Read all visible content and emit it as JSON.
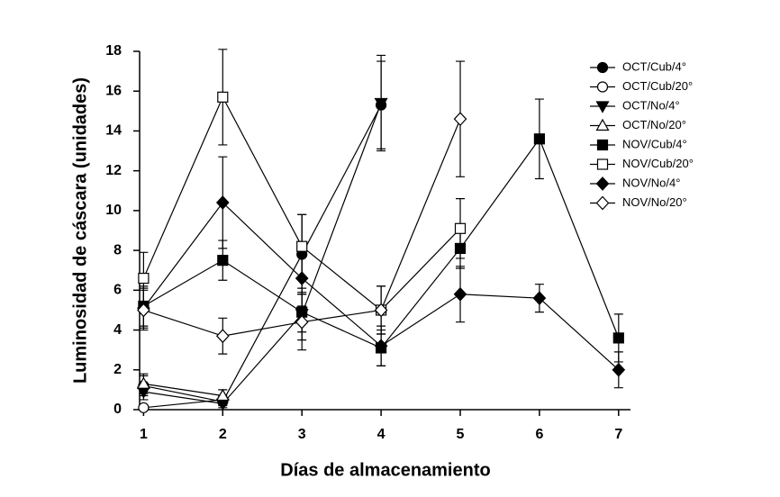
{
  "chart_data": {
    "type": "line",
    "x_label": "Días de almacenamiento",
    "y_label": "Luminosidad de cáscara (unidades)",
    "xlim": [
      0.95,
      7.15
    ],
    "xticks": [
      1,
      2,
      3,
      4,
      5,
      6,
      7
    ],
    "ylim": [
      0,
      18
    ],
    "yticks": [
      0,
      2,
      4,
      6,
      8,
      10,
      12,
      14,
      16,
      18
    ],
    "legend": "upper right",
    "x": [
      1,
      2,
      3,
      4,
      5,
      6,
      7
    ],
    "series": [
      {
        "name": "OCT/Cub/4°",
        "color": "#000000",
        "marker": "circle",
        "filled": true,
        "values": [
          1.2,
          0.4,
          7.8,
          15.3,
          null,
          null,
          null
        ],
        "errors": [
          0.5,
          0.2,
          2.0,
          2.2,
          null,
          null,
          null
        ]
      },
      {
        "name": "OCT/Cub/20°",
        "color": "#000000",
        "marker": "circle",
        "filled": false,
        "values": [
          0.1,
          0.5,
          null,
          null,
          null,
          null,
          null
        ],
        "errors": [
          0.1,
          0.2,
          null,
          null,
          null,
          null,
          null
        ]
      },
      {
        "name": "OCT/No/4°",
        "color": "#000000",
        "marker": "triangle-down",
        "filled": true,
        "values": [
          0.9,
          0.3,
          4.8,
          15.4,
          null,
          null,
          null
        ],
        "errors": [
          0.4,
          0.2,
          1.3,
          2.4,
          null,
          null,
          null
        ]
      },
      {
        "name": "OCT/No/20°",
        "color": "#000000",
        "marker": "triangle-up",
        "filled": false,
        "values": [
          1.3,
          0.7,
          null,
          null,
          null,
          null,
          null
        ],
        "errors": [
          0.5,
          0.3,
          null,
          null,
          null,
          null,
          null
        ]
      },
      {
        "name": "NOV/Cub/4°",
        "color": "#000000",
        "marker": "square",
        "filled": true,
        "values": [
          5.2,
          7.5,
          4.9,
          3.1,
          8.1,
          13.6,
          3.6
        ],
        "errors": [
          1.0,
          1.0,
          1.0,
          0.9,
          1.0,
          2.0,
          1.2
        ]
      },
      {
        "name": "NOV/Cub/20°",
        "color": "#000000",
        "marker": "square",
        "filled": false,
        "values": [
          6.6,
          15.7,
          8.2,
          5.0,
          9.1,
          null,
          null
        ],
        "errors": [
          1.3,
          2.4,
          1.6,
          1.2,
          1.5,
          null,
          null
        ]
      },
      {
        "name": "NOV/No/4°",
        "color": "#000000",
        "marker": "diamond",
        "filled": true,
        "values": [
          5.1,
          10.4,
          6.6,
          3.2,
          5.8,
          5.6,
          2.0
        ],
        "errors": [
          1.0,
          2.3,
          1.4,
          1.0,
          1.4,
          0.7,
          0.9
        ]
      },
      {
        "name": "NOV/No/20°",
        "color": "#000000",
        "marker": "diamond",
        "filled": false,
        "values": [
          5.0,
          3.7,
          4.4,
          5.0,
          14.6,
          null,
          null
        ],
        "errors": [
          1.0,
          0.9,
          1.4,
          1.2,
          2.9,
          null,
          null
        ]
      }
    ]
  }
}
